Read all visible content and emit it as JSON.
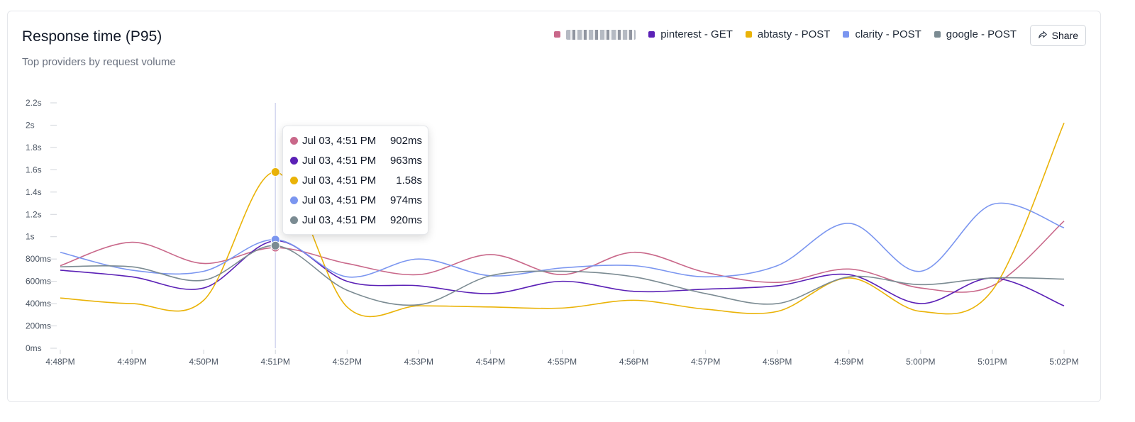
{
  "header": {
    "title": "Response time (P95)",
    "subtitle": "Top providers by request volume",
    "share_label": "Share"
  },
  "legend": [
    {
      "name": "",
      "color": "#c9688a",
      "redacted": true
    },
    {
      "name": "pinterest - GET",
      "color": "#5b21b6"
    },
    {
      "name": "abtasty - POST",
      "color": "#eab308"
    },
    {
      "name": "clarity - POST",
      "color": "#7b96f0"
    },
    {
      "name": "google - POST",
      "color": "#7b8b92"
    }
  ],
  "tooltip": {
    "rows": [
      {
        "time": "Jul 03, 4:51 PM",
        "value": "902ms",
        "color": "#c9688a"
      },
      {
        "time": "Jul 03, 4:51 PM",
        "value": "963ms",
        "color": "#5b21b6"
      },
      {
        "time": "Jul 03, 4:51 PM",
        "value": "1.58s",
        "color": "#eab308"
      },
      {
        "time": "Jul 03, 4:51 PM",
        "value": "974ms",
        "color": "#7b96f0"
      },
      {
        "time": "Jul 03, 4:51 PM",
        "value": "920ms",
        "color": "#7b8b92"
      }
    ]
  },
  "chart_data": {
    "type": "line",
    "title": "Response time (P95)",
    "subtitle": "Top providers by request volume",
    "x": [
      "4:48PM",
      "4:49PM",
      "4:50PM",
      "4:51PM",
      "4:52PM",
      "4:53PM",
      "4:54PM",
      "4:55PM",
      "4:56PM",
      "4:57PM",
      "4:58PM",
      "4:59PM",
      "5:00PM",
      "5:01PM",
      "5:02PM"
    ],
    "y_ticks": [
      "0ms",
      "200ms",
      "400ms",
      "600ms",
      "800ms",
      "1s",
      "1.2s",
      "1.4s",
      "1.6s",
      "1.8s",
      "2s",
      "2.2s"
    ],
    "ylim": [
      0,
      2200
    ],
    "y_unit": "ms",
    "highlight_index": 3,
    "grid": false,
    "legend_position": "top-right",
    "series": [
      {
        "name": "",
        "color": "#c9688a",
        "values": [
          740,
          950,
          760,
          902,
          760,
          660,
          840,
          660,
          860,
          680,
          590,
          710,
          540,
          560,
          1140
        ]
      },
      {
        "name": "pinterest - GET",
        "color": "#5b21b6",
        "values": [
          700,
          640,
          540,
          963,
          600,
          560,
          490,
          600,
          510,
          530,
          560,
          660,
          400,
          630,
          380
        ]
      },
      {
        "name": "abtasty - POST",
        "color": "#eab308",
        "values": [
          450,
          400,
          430,
          1580,
          370,
          380,
          370,
          360,
          430,
          350,
          330,
          630,
          330,
          520,
          2020
        ]
      },
      {
        "name": "clarity - POST",
        "color": "#7b96f0",
        "values": [
          860,
          700,
          690,
          974,
          640,
          800,
          650,
          720,
          740,
          640,
          740,
          1120,
          690,
          1290,
          1080
        ]
      },
      {
        "name": "google - POST",
        "color": "#7b8b92",
        "values": [
          730,
          730,
          610,
          920,
          520,
          390,
          650,
          690,
          640,
          490,
          400,
          640,
          570,
          630,
          620
        ]
      }
    ]
  }
}
